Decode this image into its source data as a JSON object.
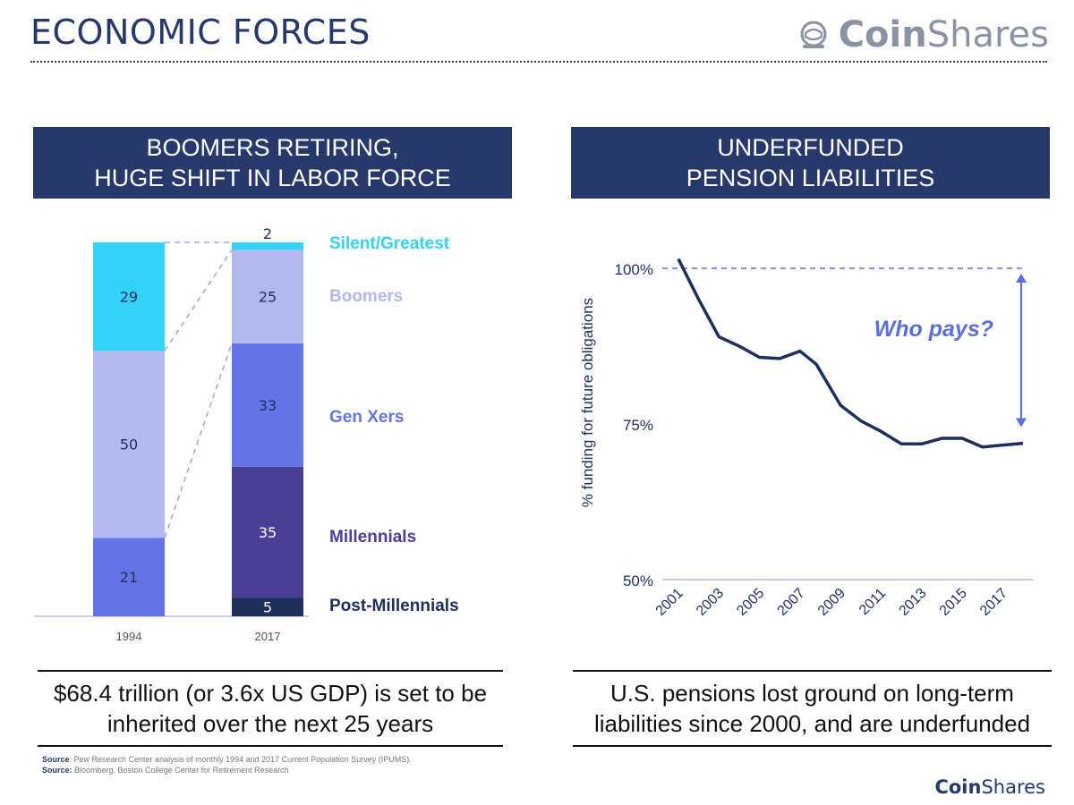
{
  "header": {
    "title": "ECONOMIC FORCES",
    "logo_bold": "Coin",
    "logo_light": "Shares"
  },
  "left_panel": {
    "heading_line1": "BOOMERS RETIRING,",
    "heading_line2": "HUGE SHIFT IN LABOR FORCE",
    "caption_line1": "$68.4 trillion (or 3.6x US GDP) is set to be",
    "caption_line2": "inherited over the next 25 years"
  },
  "right_panel": {
    "heading_line1": "UNDERFUNDED",
    "heading_line2": "PENSION LIABILITIES",
    "annotation": "Who pays?",
    "caption_line1": "U.S. pensions lost ground on long-term",
    "caption_line2": "liabilities since 2000, and are underfunded"
  },
  "sources": {
    "label1": "Source",
    "text1": ": Pew Research Center analysis of monthly 1994 and 2017 Current Population Survey (IPUMS).",
    "label2": "Source:",
    "text2": " Bloomberg, Boston College Center for Retirement Research"
  },
  "footer": {
    "logo_bold": "Coin",
    "logo_light": "Shares"
  },
  "colors": {
    "navy": "#27386b",
    "silent": "#33d3f7",
    "boomers": "#b1b9ef",
    "genx": "#6473e6",
    "millennials": "#4a3f96",
    "post_millennials": "#1f2f5c",
    "annotation": "#5b6ed9"
  },
  "chart_data": [
    {
      "type": "bar",
      "stacked": true,
      "categories": [
        "1994",
        "2017"
      ],
      "series": [
        {
          "name": "Post-Millennials",
          "values": [
            0,
            5
          ],
          "color": "#1f2f5c"
        },
        {
          "name": "Millennials",
          "values": [
            0,
            35
          ],
          "color": "#4a3f96"
        },
        {
          "name": "Gen Xers",
          "values": [
            21,
            33
          ],
          "color": "#6473e6"
        },
        {
          "name": "Boomers",
          "values": [
            50,
            25
          ],
          "color": "#b1b9ef"
        },
        {
          "name": "Silent/Greatest",
          "values": [
            29,
            2
          ],
          "color": "#33d3f7"
        }
      ],
      "legend_position": "right",
      "data_labels": true
    },
    {
      "type": "line",
      "ylabel": "% funding for future obligations",
      "y_ticks": [
        "100%",
        "75%",
        "50%"
      ],
      "y_tick_values": [
        100,
        75,
        50
      ],
      "ylim": [
        50,
        102
      ],
      "x_ticks": [
        "2001",
        "2003",
        "2005",
        "2007",
        "2009",
        "2011",
        "2013",
        "2015",
        "2017"
      ],
      "xlim": [
        2001,
        2018
      ],
      "reference_line": 100,
      "series": [
        {
          "x": [
            2001,
            2002,
            2003,
            2004,
            2005,
            2006,
            2007,
            2007.8,
            2009,
            2010,
            2011,
            2012,
            2013,
            2014,
            2015,
            2016,
            2017,
            2018
          ],
          "y": [
            101.5,
            95,
            89,
            87.5,
            85.7,
            85.5,
            86.7,
            84.6,
            78,
            75.5,
            73.8,
            71.8,
            71.8,
            72.7,
            72.7,
            71.3,
            71.6,
            71.9
          ]
        }
      ]
    }
  ]
}
